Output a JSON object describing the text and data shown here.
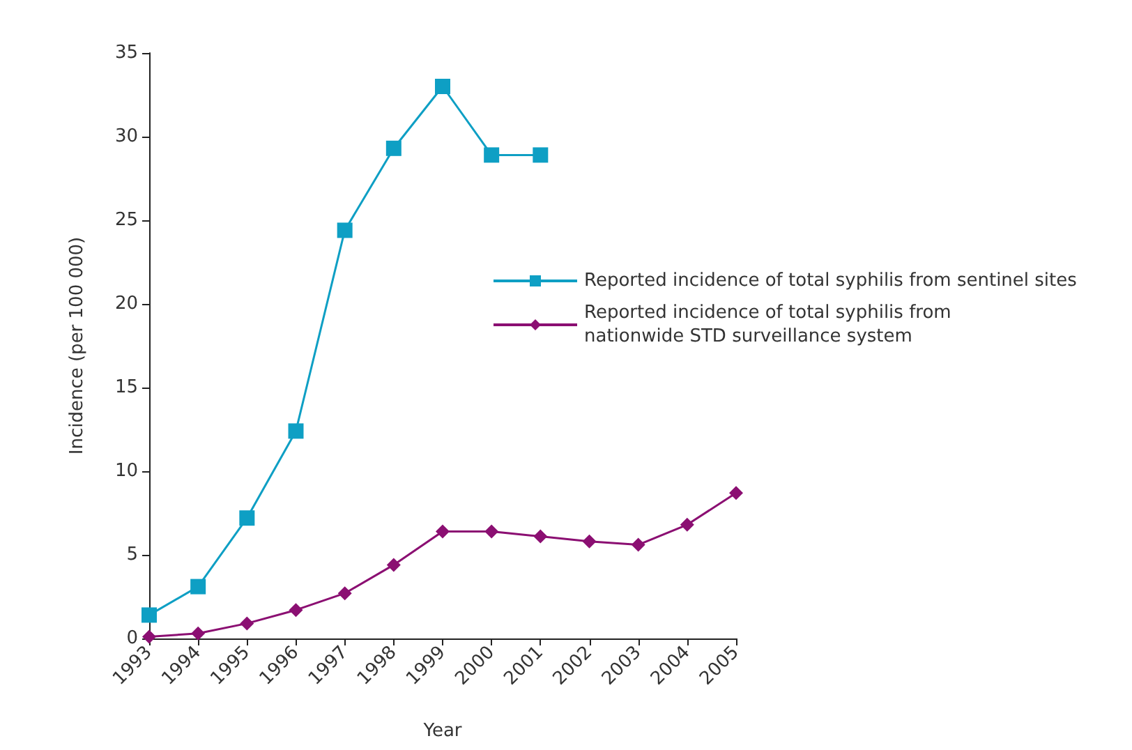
{
  "chart_data": {
    "type": "line",
    "xlabel": "Year",
    "ylabel": "Incidence (per 100 000)",
    "categories": [
      "1993",
      "1994",
      "1995",
      "1996",
      "1997",
      "1998",
      "1999",
      "2000",
      "2001",
      "2002",
      "2003",
      "2004",
      "2005"
    ],
    "series": [
      {
        "name": "Reported incidence of total syphilis from sentinel sites",
        "color": "#0e9fc4",
        "marker": "square",
        "values": [
          1.4,
          3.1,
          7.2,
          12.4,
          24.4,
          29.3,
          33,
          28.9,
          28.9,
          null,
          null,
          null,
          null
        ]
      },
      {
        "name": "Reported incidence of total syphilis from\nnationwide STD surveillance system",
        "color": "#8b0f72",
        "marker": "diamond",
        "values": [
          0.1,
          0.3,
          0.9,
          1.7,
          2.7,
          4.4,
          6.4,
          6.4,
          6.1,
          5.8,
          5.6,
          6.8,
          8.7
        ]
      }
    ],
    "ylim": [
      0,
      35
    ],
    "yticks": [
      0,
      5,
      10,
      15,
      20,
      25,
      30,
      35
    ],
    "grid": false,
    "legend": "right",
    "line_style": "solid"
  }
}
